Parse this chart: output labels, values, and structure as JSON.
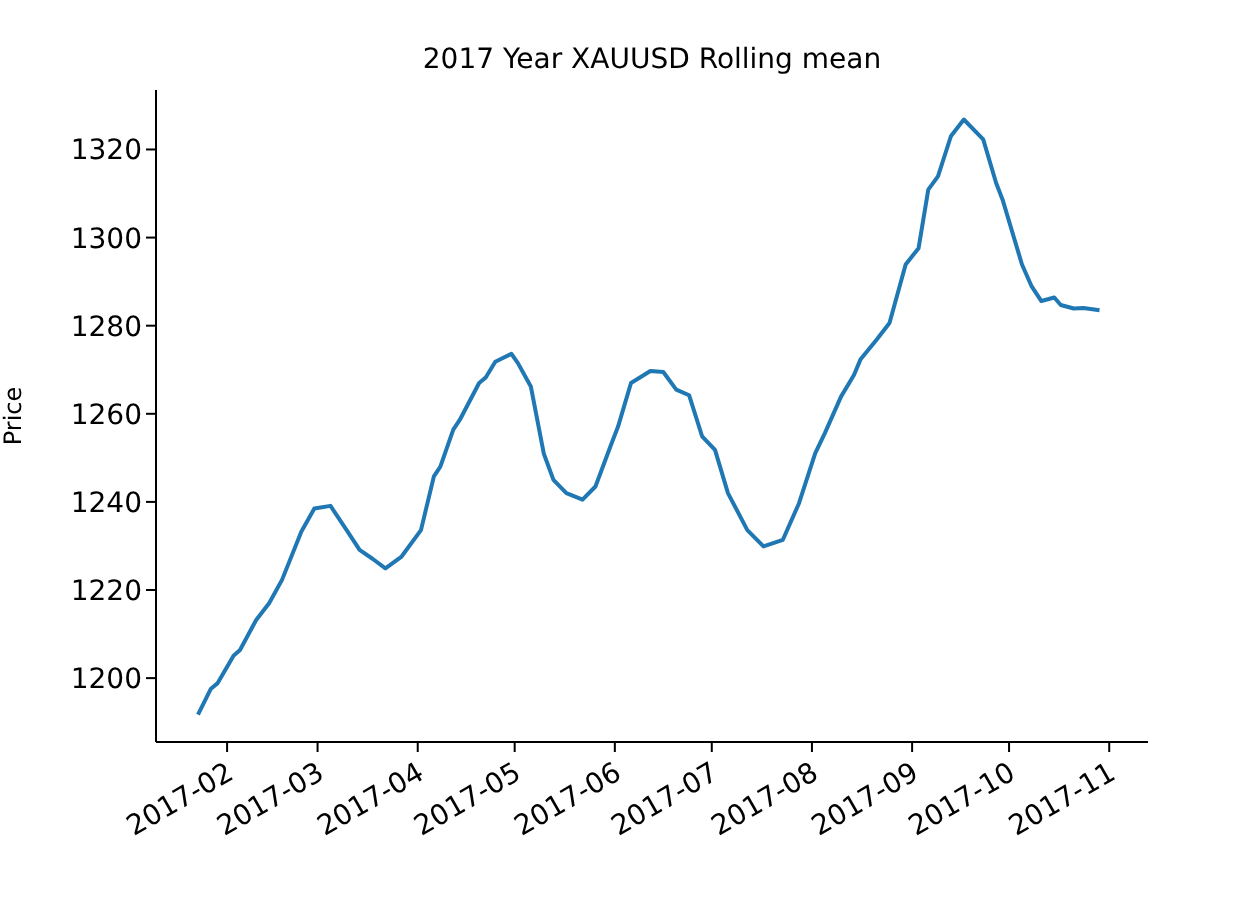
{
  "chart_data": {
    "type": "line",
    "title": "2017 Year XAUUSD Rolling mean",
    "ylabel": "Price",
    "x": [
      "2017-01-23",
      "2017-01-27",
      "2017-01-29",
      "2017-02-03",
      "2017-02-05",
      "2017-02-10",
      "2017-02-14",
      "2017-02-18",
      "2017-02-24",
      "2017-02-28",
      "2017-03-05",
      "2017-03-10",
      "2017-03-14",
      "2017-03-18",
      "2017-03-22",
      "2017-03-27",
      "2017-04-02",
      "2017-04-06",
      "2017-04-08",
      "2017-04-12",
      "2017-04-14",
      "2017-04-20",
      "2017-04-22",
      "2017-04-25",
      "2017-04-30",
      "2017-05-02",
      "2017-05-06",
      "2017-05-10",
      "2017-05-13",
      "2017-05-17",
      "2017-05-22",
      "2017-05-26",
      "2017-05-31",
      "2017-06-02",
      "2017-06-06",
      "2017-06-12",
      "2017-06-16",
      "2017-06-20",
      "2017-06-24",
      "2017-06-28",
      "2017-07-02",
      "2017-07-06",
      "2017-07-12",
      "2017-07-17",
      "2017-07-23",
      "2017-07-28",
      "2017-08-02",
      "2017-08-05",
      "2017-08-10",
      "2017-08-14",
      "2017-08-16",
      "2017-08-21",
      "2017-08-25",
      "2017-08-30",
      "2017-09-03",
      "2017-09-06",
      "2017-09-09",
      "2017-09-13",
      "2017-09-17",
      "2017-09-23",
      "2017-09-27",
      "2017-09-29",
      "2017-10-05",
      "2017-10-08",
      "2017-10-11",
      "2017-10-15",
      "2017-10-17",
      "2017-10-21",
      "2017-10-24",
      "2017-10-29"
    ],
    "series": [
      {
        "color": "#1f77b4",
        "values": [
          1191.7,
          1197.6,
          1198.8,
          1205.1,
          1206.4,
          1213.2,
          1217,
          1222.3,
          1233.3,
          1238.5,
          1239.1,
          1233.6,
          1229.1,
          1227.1,
          1224.9,
          1227.6,
          1233.6,
          1245.8,
          1248,
          1256.4,
          1258.6,
          1267,
          1268.2,
          1271.8,
          1273.6,
          1271.5,
          1266.2,
          1251,
          1245,
          1242,
          1240.5,
          1243.5,
          1253.3,
          1257.1,
          1267,
          1269.7,
          1269.5,
          1265.5,
          1264.2,
          1254.9,
          1251.8,
          1242,
          1233.6,
          1229.9,
          1231.4,
          1239.7,
          1251,
          1255.6,
          1263.9,
          1268.8,
          1272.3,
          1276.8,
          1280.6,
          1293.9,
          1297.6,
          1310.9,
          1313.9,
          1323,
          1326.8,
          1322.3,
          1312.4,
          1308.6,
          1293.9,
          1288.9,
          1285.6,
          1286.4,
          1284.7,
          1283.9,
          1284,
          1283.5
        ]
      }
    ],
    "xlim": [
      "2017-01-10",
      "2017-11-13"
    ],
    "xticks": [
      "2017-02",
      "2017-03",
      "2017-04",
      "2017-05",
      "2017-06",
      "2017-07",
      "2017-08",
      "2017-09",
      "2017-10",
      "2017-11"
    ],
    "ylim": [
      1185.5,
      1333.5
    ],
    "yticks": [
      1200,
      1220,
      1240,
      1260,
      1280,
      1300,
      1320
    ]
  }
}
